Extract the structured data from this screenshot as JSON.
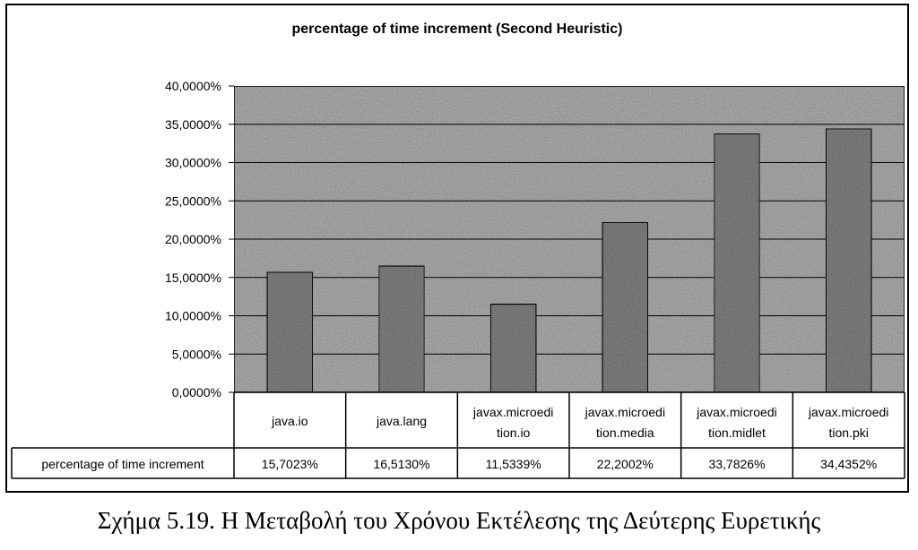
{
  "caption": "Σχήμα 5.19. Η Μεταβολή του Χρόνου Εκτέλεσης της Δεύτερης Ευρετικής",
  "chart_data": {
    "type": "bar",
    "title": "percentage of time increment (Second Heuristic)",
    "categories": [
      [
        "java.io"
      ],
      [
        "java.lang"
      ],
      [
        "javax.microedi",
        "tion.io"
      ],
      [
        "javax.microedi",
        "tion.media"
      ],
      [
        "javax.microedi",
        "tion.midlet"
      ],
      [
        "javax.microedi",
        "tion.pki"
      ]
    ],
    "series": [
      {
        "name": "percentage of time increment",
        "values": [
          15.7023,
          16.513,
          11.5339,
          22.2002,
          33.7826,
          34.4352
        ],
        "value_labels": [
          "15,7023%",
          "16,5130%",
          "11,5339%",
          "22,2002%",
          "33,7826%",
          "34,4352%"
        ]
      }
    ],
    "ylim": [
      0,
      40
    ],
    "yticks": [
      0,
      5,
      10,
      15,
      20,
      25,
      30,
      35,
      40
    ],
    "ytick_labels": [
      "0,0000%",
      "5,0000%",
      "10,0000%",
      "15,0000%",
      "20,0000%",
      "25,0000%",
      "30,0000%",
      "35,0000%",
      "40,0000%"
    ],
    "grid": true,
    "data_table": true,
    "colors": {
      "plot_background": "#b8b8b8",
      "bar_fill": "#8a8a8a",
      "bar_stroke": "#000000"
    }
  }
}
